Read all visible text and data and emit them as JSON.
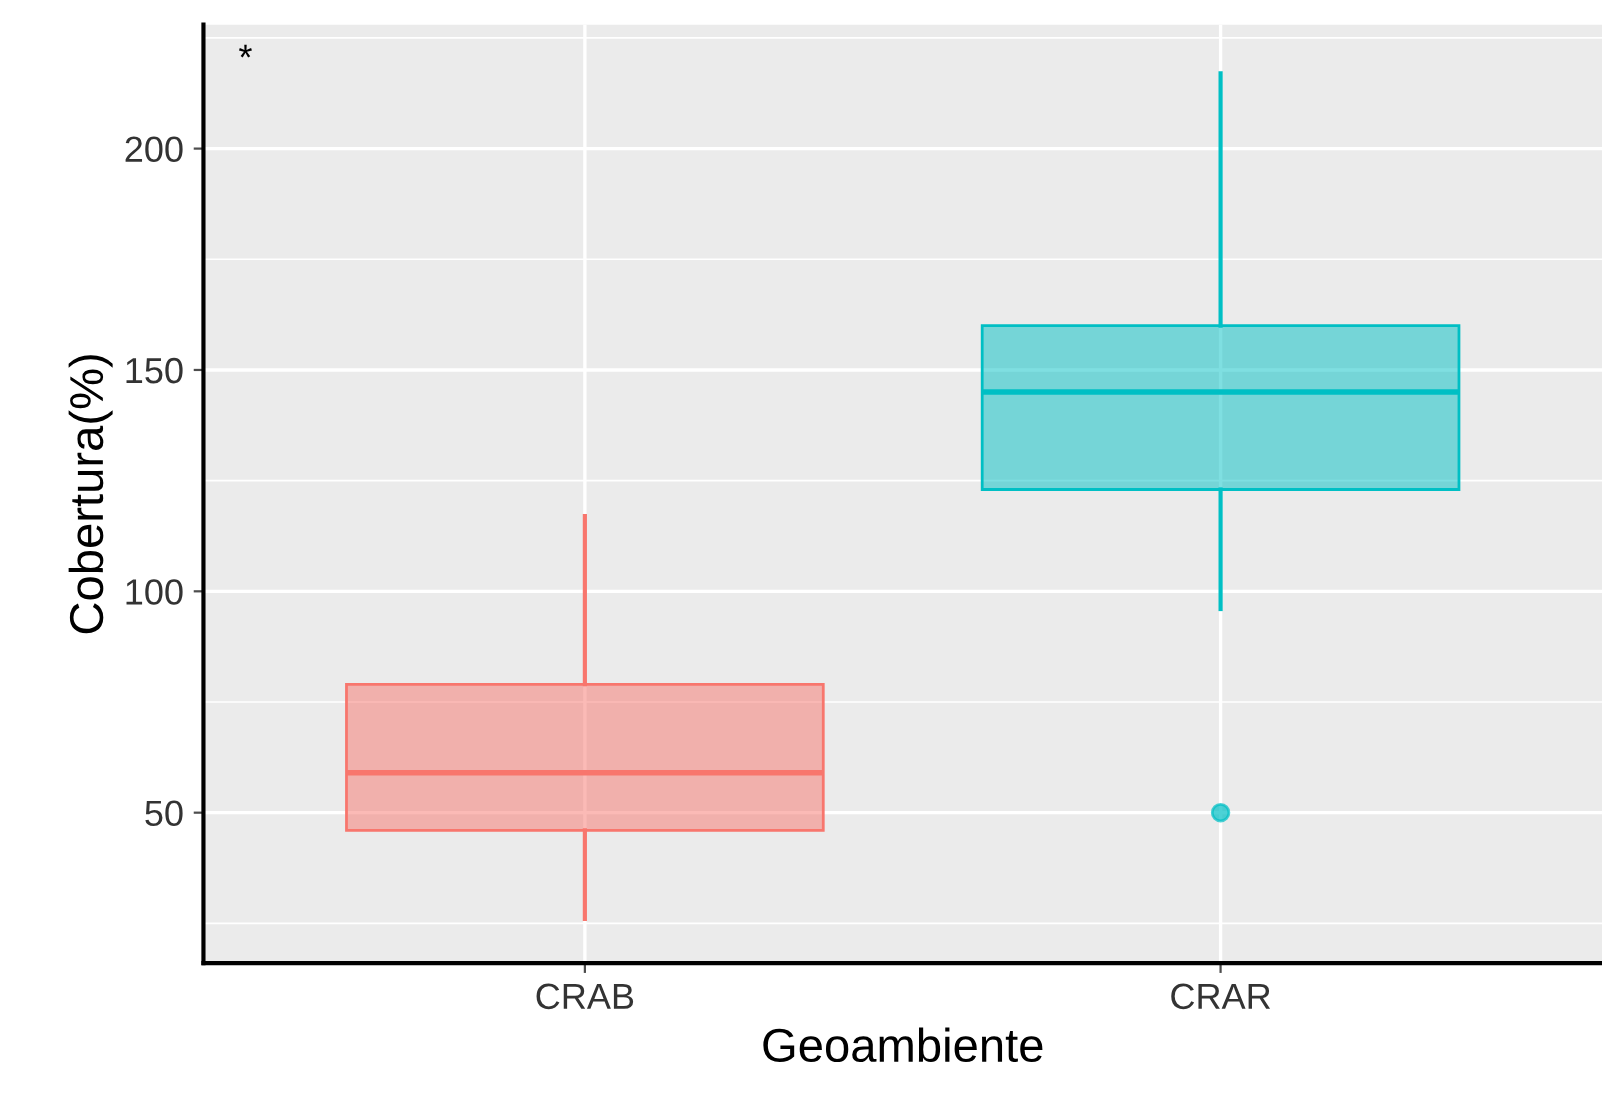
{
  "chart_data": {
    "type": "box",
    "xlabel": "Geoambiente",
    "ylabel": "Cobertura(%)",
    "categories": [
      "CRAB",
      "CRAR"
    ],
    "colors": [
      "#f8766d",
      "#00bfc4"
    ],
    "boxes": [
      {
        "low": 26,
        "q1": 46,
        "median": 59,
        "q3": 79,
        "high": 117
      },
      {
        "low": 96,
        "q1": 123,
        "median": 145,
        "q3": 160,
        "high": 217,
        "outliers": [
          50
        ]
      }
    ],
    "ylim": [
      16,
      228
    ],
    "yticks": [
      50,
      100,
      150,
      200
    ],
    "grid": true,
    "annotations": [
      "*"
    ]
  }
}
